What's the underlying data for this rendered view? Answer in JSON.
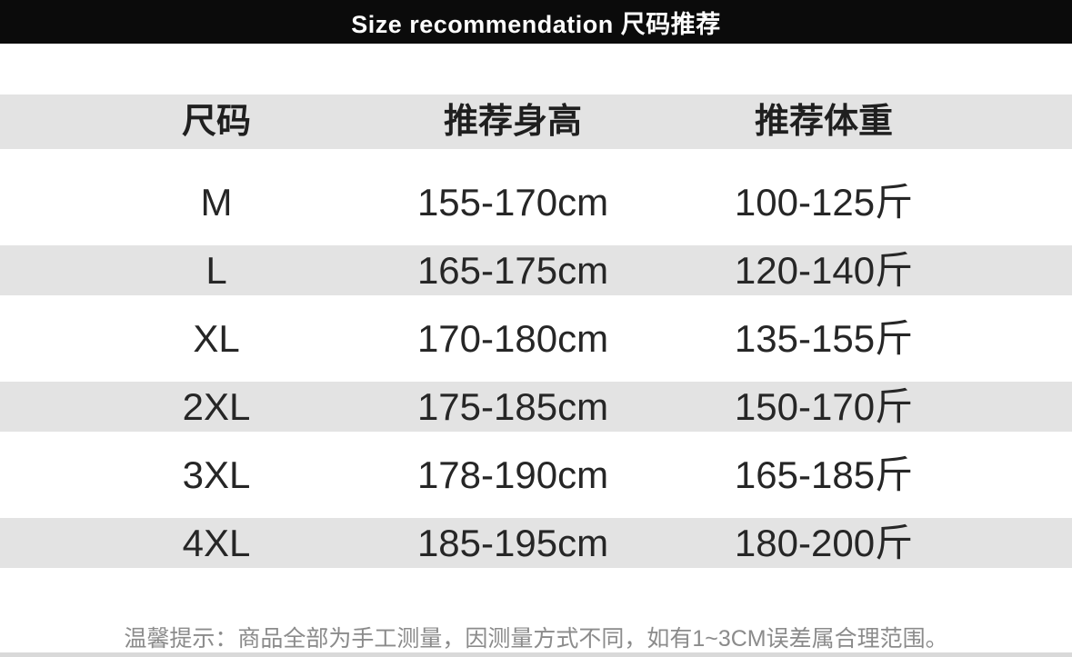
{
  "header_bar": {
    "title": "Size recommendation 尺码推荐"
  },
  "table": {
    "columns": [
      "尺码",
      "推荐身高",
      "推荐体重"
    ],
    "rows": [
      {
        "size": "M",
        "height": "155-170cm",
        "weight": "100-125斤"
      },
      {
        "size": "L",
        "height": "165-175cm",
        "weight": "120-140斤"
      },
      {
        "size": "XL",
        "height": "170-180cm",
        "weight": "135-155斤"
      },
      {
        "size": "2XL",
        "height": "175-185cm",
        "weight": "150-170斤"
      },
      {
        "size": "3XL",
        "height": "178-190cm",
        "weight": "165-185斤"
      },
      {
        "size": "4XL",
        "height": "185-195cm",
        "weight": "180-200斤"
      }
    ]
  },
  "footer": {
    "note": "温馨提示：商品全部为手工测量，因测量方式不同，如有1~3CM误差属合理范围。"
  },
  "colors": {
    "bar": "#0b0b0b",
    "stripe": "#e3e3e3",
    "text": "#262626",
    "muted": "#8b8b8b"
  }
}
